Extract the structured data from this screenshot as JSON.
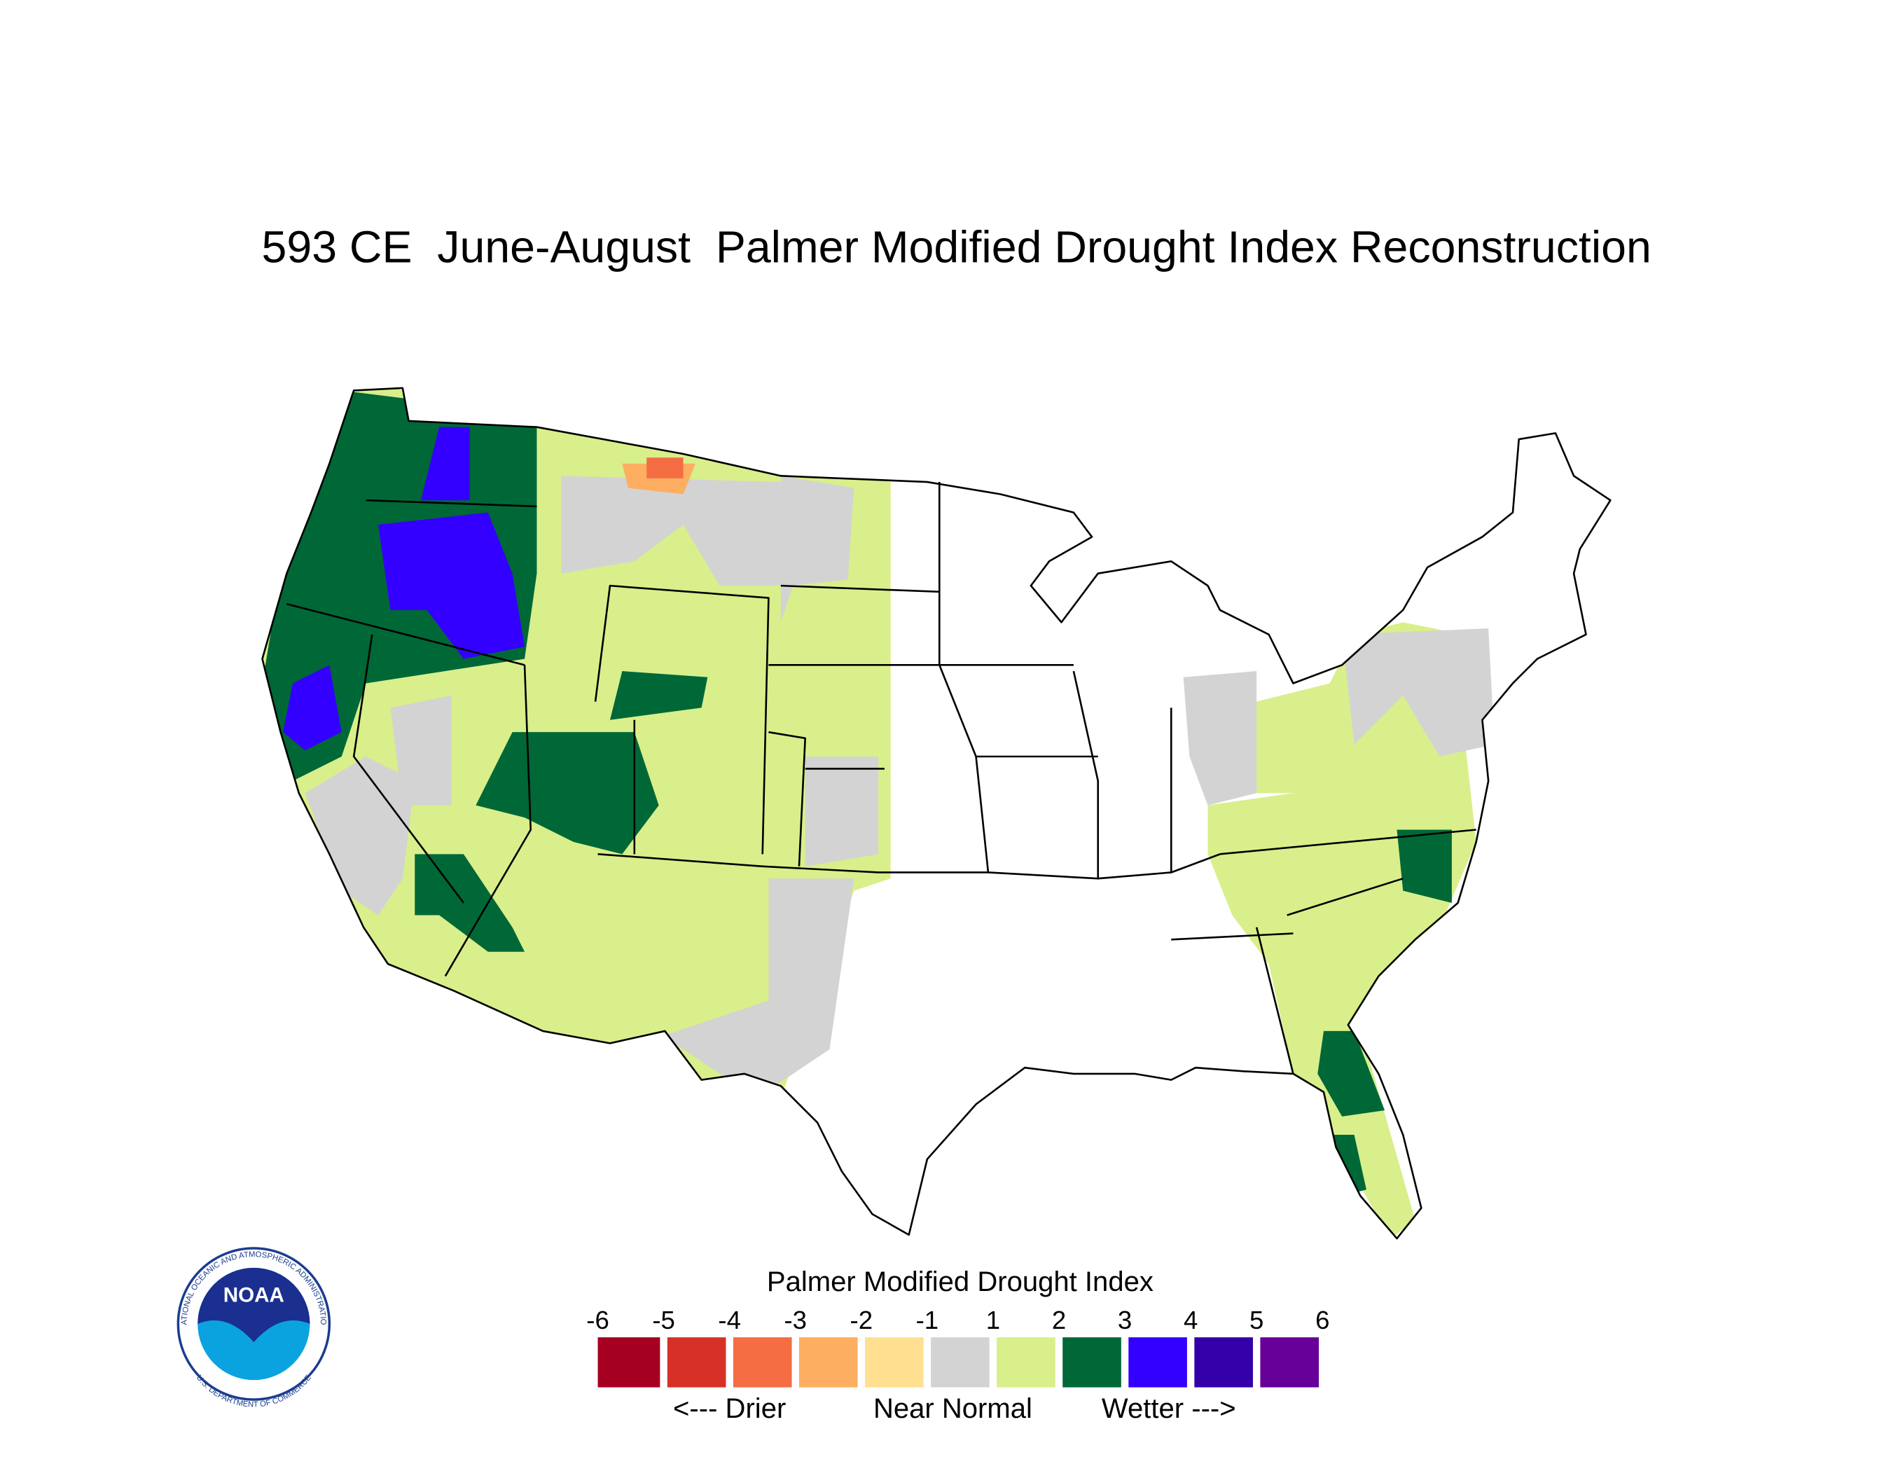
{
  "title": "593 CE  June-August  Palmer Modified Drought Index Reconstruction",
  "legend": {
    "title": "Palmer Modified Drought Index",
    "ticks": [
      -6,
      -5,
      -4,
      -3,
      -2,
      -1,
      1,
      2,
      3,
      4,
      5,
      6
    ],
    "colors": [
      "#a50021",
      "#d73027",
      "#f46d43",
      "#fdae61",
      "#fee090",
      "#d3d3d3",
      "#d9ef8b",
      "#006837",
      "#3300ff",
      "#3300aa",
      "#660099"
    ],
    "captions": [
      "<--- Drier",
      "Near Normal",
      "Wetter --->"
    ]
  },
  "logo": {
    "name": "NOAA",
    "ring_top": "NATIONAL OCEANIC AND ATMOSPHERIC ADMINISTRATION",
    "ring_bottom": "U.S. DEPARTMENT OF COMMERCE"
  }
}
